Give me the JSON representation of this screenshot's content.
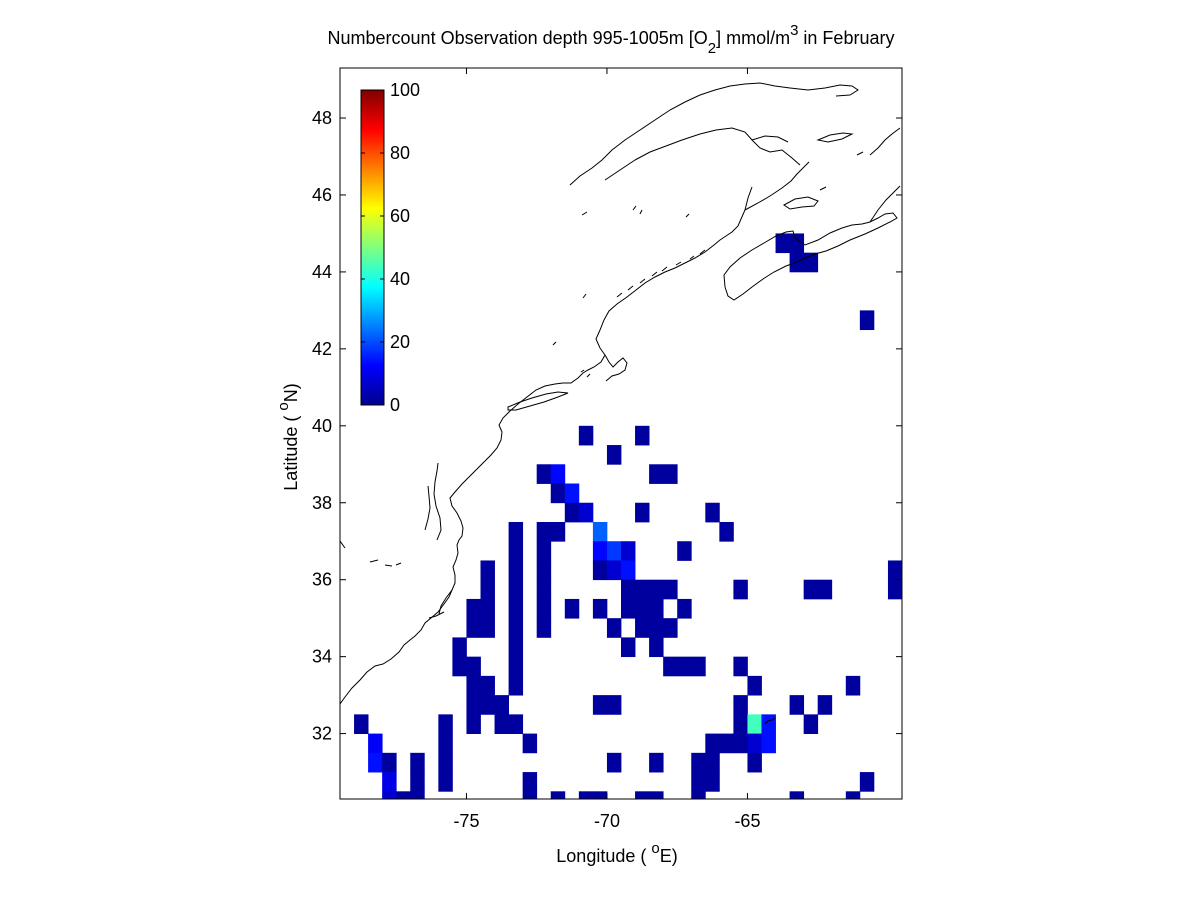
{
  "chart_data": {
    "type": "heatmap",
    "title": {
      "pre": "Numbercount Observation depth 995-1005m [O",
      "sub": "2",
      "mid": "] mmol/m",
      "sup": "3",
      "post": " in February"
    },
    "xlabel": {
      "pre": "Longitude ( ",
      "sup": "o",
      "post": "E)"
    },
    "ylabel": {
      "pre": "Latitude ( ",
      "sup": "o",
      "post": "N)"
    },
    "xlim": [
      -79.5,
      -59.5
    ],
    "ylim": [
      30.3,
      49.3
    ],
    "xticks": [
      -75,
      -70,
      -65
    ],
    "xtick_labels": [
      "-75",
      "-70",
      "-65"
    ],
    "yticks": [
      32,
      34,
      36,
      38,
      40,
      42,
      44,
      46,
      48
    ],
    "ytick_labels": [
      "32",
      "34",
      "36",
      "38",
      "40",
      "42",
      "44",
      "46",
      "48"
    ],
    "colorbar": {
      "colormap": "jet",
      "range": [
        0,
        100
      ],
      "ticks": [
        0,
        20,
        40,
        60,
        80,
        100
      ],
      "tick_labels": [
        "0",
        "20",
        "40",
        "60",
        "80",
        "100"
      ],
      "placement": "upper-left inside axes"
    },
    "grid_deg": 0.5,
    "cells": [
      [
        -78.75,
        32.25,
        3
      ],
      [
        -78.25,
        31.75,
        12
      ],
      [
        -78.25,
        31.25,
        14
      ],
      [
        -77.75,
        31.25,
        3
      ],
      [
        -77.75,
        30.75,
        10
      ],
      [
        -77.75,
        30.25,
        8
      ],
      [
        -77.25,
        30.25,
        3
      ],
      [
        -76.75,
        31.25,
        3
      ],
      [
        -76.75,
        30.75,
        3
      ],
      [
        -76.75,
        30.25,
        3
      ],
      [
        -75.75,
        32.25,
        3
      ],
      [
        -75.75,
        31.75,
        3
      ],
      [
        -75.75,
        31.25,
        3
      ],
      [
        -75.75,
        30.75,
        3
      ],
      [
        -75.25,
        34.25,
        3
      ],
      [
        -75.25,
        33.75,
        3
      ],
      [
        -74.75,
        35.25,
        3
      ],
      [
        -74.75,
        34.75,
        3
      ],
      [
        -74.75,
        33.75,
        3
      ],
      [
        -74.75,
        33.25,
        3
      ],
      [
        -74.75,
        32.75,
        3
      ],
      [
        -74.75,
        32.25,
        3
      ],
      [
        -74.25,
        36.25,
        3
      ],
      [
        -74.25,
        35.75,
        3
      ],
      [
        -74.25,
        35.25,
        3
      ],
      [
        -74.25,
        34.75,
        3
      ],
      [
        -74.25,
        33.25,
        3
      ],
      [
        -74.25,
        32.75,
        3
      ],
      [
        -73.75,
        32.75,
        3
      ],
      [
        -73.75,
        32.25,
        3
      ],
      [
        -73.25,
        37.25,
        3
      ],
      [
        -73.25,
        36.75,
        3
      ],
      [
        -73.25,
        36.25,
        3
      ],
      [
        -73.25,
        35.75,
        3
      ],
      [
        -73.25,
        35.25,
        3
      ],
      [
        -73.25,
        34.75,
        3
      ],
      [
        -73.25,
        34.25,
        3
      ],
      [
        -73.25,
        33.75,
        3
      ],
      [
        -73.25,
        33.25,
        3
      ],
      [
        -73.25,
        32.25,
        3
      ],
      [
        -72.75,
        31.75,
        3
      ],
      [
        -72.75,
        30.75,
        3
      ],
      [
        -72.75,
        30.25,
        3
      ],
      [
        -72.25,
        38.75,
        3
      ],
      [
        -72.25,
        37.25,
        3
      ],
      [
        -72.25,
        36.75,
        3
      ],
      [
        -72.25,
        36.25,
        3
      ],
      [
        -72.25,
        35.75,
        3
      ],
      [
        -72.25,
        35.25,
        3
      ],
      [
        -72.25,
        34.75,
        3
      ],
      [
        -71.75,
        38.75,
        13
      ],
      [
        -71.75,
        38.25,
        3
      ],
      [
        -71.75,
        37.25,
        3
      ],
      [
        -71.75,
        30.25,
        3
      ],
      [
        -71.25,
        38.25,
        14
      ],
      [
        -71.25,
        37.75,
        3
      ],
      [
        -71.25,
        35.25,
        3
      ],
      [
        -70.75,
        39.75,
        3
      ],
      [
        -70.75,
        37.75,
        8
      ],
      [
        -70.75,
        30.25,
        3
      ],
      [
        -70.25,
        37.25,
        22
      ],
      [
        -70.25,
        36.75,
        13
      ],
      [
        -70.25,
        36.25,
        3
      ],
      [
        -70.25,
        35.25,
        3
      ],
      [
        -70.25,
        32.75,
        3
      ],
      [
        -70.25,
        30.25,
        3
      ],
      [
        -69.75,
        39.25,
        3
      ],
      [
        -69.75,
        36.75,
        18
      ],
      [
        -69.75,
        36.25,
        8
      ],
      [
        -69.75,
        34.75,
        3
      ],
      [
        -69.75,
        32.75,
        3
      ],
      [
        -69.75,
        31.25,
        3
      ],
      [
        -69.25,
        36.75,
        8
      ],
      [
        -69.25,
        36.25,
        14
      ],
      [
        -69.25,
        35.75,
        3
      ],
      [
        -69.25,
        35.25,
        3
      ],
      [
        -69.25,
        34.25,
        3
      ],
      [
        -68.75,
        39.75,
        3
      ],
      [
        -68.75,
        37.75,
        3
      ],
      [
        -68.75,
        35.75,
        3
      ],
      [
        -68.75,
        35.25,
        3
      ],
      [
        -68.75,
        34.75,
        3
      ],
      [
        -68.75,
        30.25,
        3
      ],
      [
        -68.25,
        38.75,
        3
      ],
      [
        -68.25,
        35.75,
        3
      ],
      [
        -68.25,
        35.25,
        3
      ],
      [
        -68.25,
        34.75,
        3
      ],
      [
        -68.25,
        34.25,
        3
      ],
      [
        -68.25,
        31.25,
        3
      ],
      [
        -68.25,
        30.25,
        3
      ],
      [
        -67.75,
        38.75,
        3
      ],
      [
        -67.75,
        35.75,
        3
      ],
      [
        -67.75,
        34.75,
        3
      ],
      [
        -67.75,
        33.75,
        3
      ],
      [
        -67.25,
        36.75,
        3
      ],
      [
        -67.25,
        35.25,
        3
      ],
      [
        -67.25,
        33.75,
        3
      ],
      [
        -66.75,
        33.75,
        3
      ],
      [
        -66.75,
        31.25,
        3
      ],
      [
        -66.75,
        30.75,
        3
      ],
      [
        -66.75,
        30.25,
        3
      ],
      [
        -66.25,
        37.75,
        3
      ],
      [
        -66.25,
        31.75,
        3
      ],
      [
        -66.25,
        31.25,
        3
      ],
      [
        -66.25,
        30.75,
        3
      ],
      [
        -65.75,
        37.25,
        3
      ],
      [
        -65.75,
        31.75,
        3
      ],
      [
        -65.25,
        35.75,
        3
      ],
      [
        -65.25,
        33.75,
        3
      ],
      [
        -65.25,
        32.75,
        3
      ],
      [
        -65.25,
        32.25,
        3
      ],
      [
        -65.25,
        31.75,
        3
      ],
      [
        -64.75,
        33.25,
        3
      ],
      [
        -64.75,
        32.25,
        44
      ],
      [
        -64.75,
        31.75,
        8
      ],
      [
        -64.75,
        31.25,
        3
      ],
      [
        -64.25,
        32.25,
        14
      ],
      [
        -64.25,
        31.75,
        14
      ],
      [
        -63.25,
        32.75,
        3
      ],
      [
        -63.25,
        30.25,
        3
      ],
      [
        -62.75,
        35.75,
        3
      ],
      [
        -62.75,
        32.25,
        3
      ],
      [
        -62.25,
        35.75,
        3
      ],
      [
        -62.25,
        32.75,
        3
      ],
      [
        -63.75,
        44.75,
        3
      ],
      [
        -63.25,
        44.75,
        3
      ],
      [
        -63.25,
        44.25,
        3
      ],
      [
        -62.75,
        44.25,
        3
      ],
      [
        -61.25,
        33.25,
        3
      ],
      [
        -61.25,
        30.25,
        3
      ],
      [
        -60.75,
        42.75,
        3
      ],
      [
        -60.75,
        30.75,
        3
      ],
      [
        -59.75,
        36.25,
        3
      ],
      [
        -59.75,
        35.75,
        3
      ]
    ]
  }
}
